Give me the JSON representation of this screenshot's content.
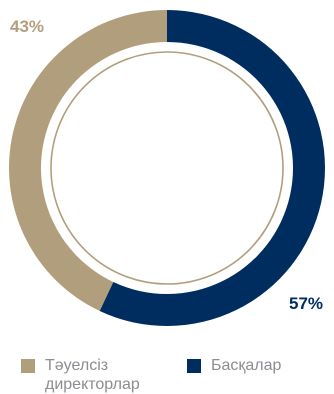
{
  "chart_data": {
    "type": "pie",
    "variant": "donut",
    "categories": [
      "Тәуелсіз директорлар",
      "Басқалар"
    ],
    "values": [
      43,
      57
    ],
    "labels": [
      "43%",
      "57%"
    ],
    "colors": [
      "#b19e7c",
      "#002d5f"
    ],
    "title": "",
    "legend_position": "bottom"
  }
}
